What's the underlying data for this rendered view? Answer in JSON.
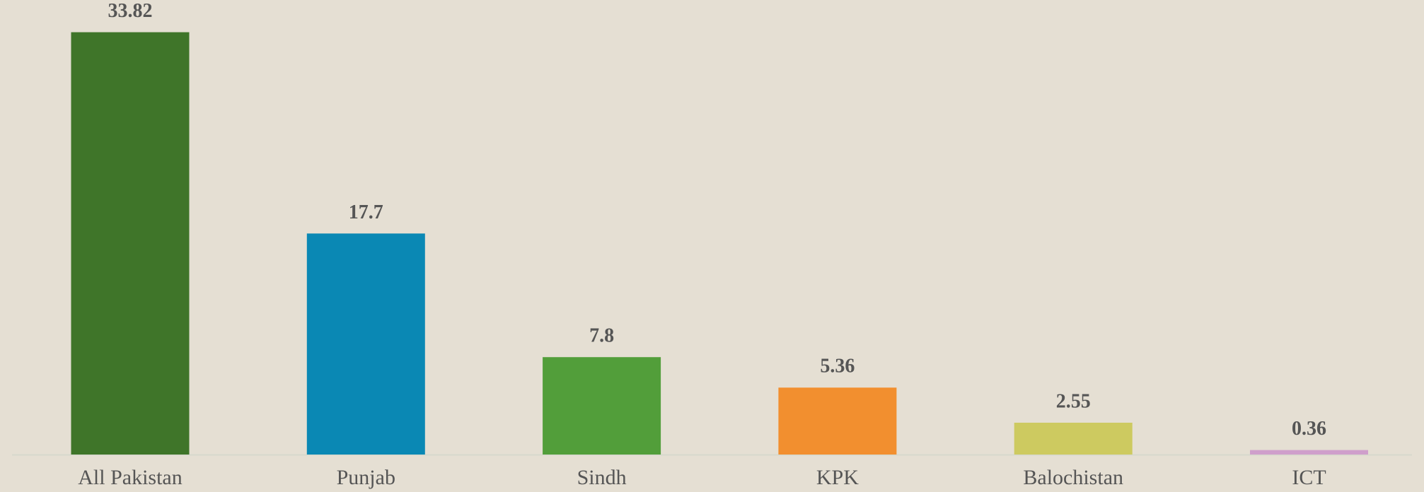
{
  "chart_data": {
    "type": "bar",
    "categories": [
      "All Pakistan",
      "Punjab",
      "Sindh",
      "KPK",
      "Balochistan",
      "ICT"
    ],
    "values": [
      33.82,
      17.7,
      7.8,
      5.36,
      2.55,
      0.36
    ],
    "colors": [
      "#3f7529",
      "#0a88b4",
      "#529e3a",
      "#f28f2f",
      "#cdca60",
      "#cf9fcb"
    ],
    "ylim": [
      0,
      36.4
    ]
  }
}
